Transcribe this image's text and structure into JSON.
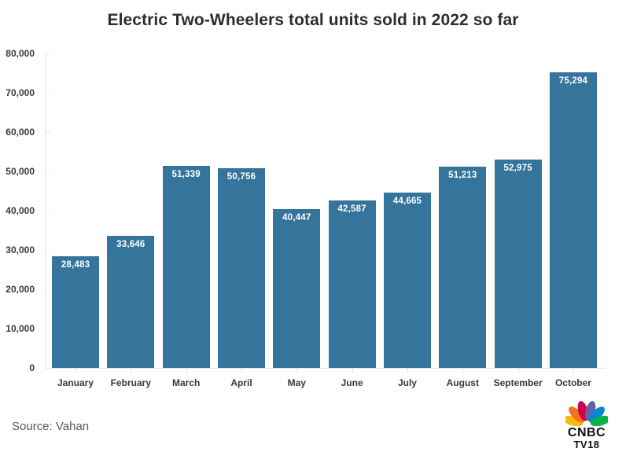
{
  "source": "Source: Vahan",
  "logo": {
    "line1": "CNBC",
    "line2": "TV18",
    "peacock_colors": [
      "#FCB711",
      "#F37021",
      "#CC004C",
      "#6460AA",
      "#0089D0",
      "#0DB14B"
    ]
  },
  "colors": {
    "bar": "#35749B",
    "title_text": "#2d2d2d",
    "axis_text": "#3a3a3a",
    "axis_line": "#e3e3e3",
    "value_label": "#ffffff",
    "source_text": "#59595b"
  },
  "chart_data": {
    "type": "bar",
    "title": "Electric Two-Wheelers total units sold in 2022 so far",
    "categories": [
      "January",
      "February",
      "March",
      "April",
      "May",
      "June",
      "July",
      "August",
      "September",
      "October"
    ],
    "values": [
      28483,
      33646,
      51339,
      50756,
      40447,
      42587,
      44665,
      51213,
      52975,
      75294
    ],
    "xlabel": "",
    "ylabel": "",
    "ylim": [
      0,
      80000
    ],
    "ytick_step": 10000,
    "ytick_labels": [
      "0",
      "10,000",
      "20,000",
      "30,000",
      "40,000",
      "50,000",
      "60,000",
      "70,000",
      "80,000"
    ],
    "grid": false,
    "legend": false,
    "bar_color": "#35749B",
    "value_labels_inside_bar": true
  }
}
